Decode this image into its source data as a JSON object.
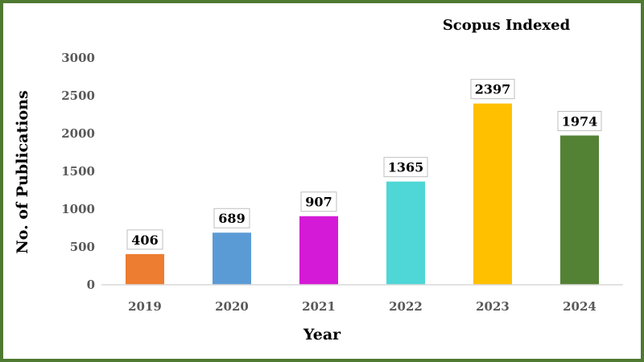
{
  "chart_data": {
    "type": "bar",
    "title": "Scopus Indexed",
    "xlabel": "Year",
    "ylabel": "No. of Publications",
    "categories": [
      "2019",
      "2020",
      "2021",
      "2022",
      "2023",
      "2024"
    ],
    "values": [
      406,
      689,
      907,
      1365,
      2397,
      1974
    ],
    "data_labels": [
      "406",
      "689",
      "907",
      "1365",
      "2397",
      "1974"
    ],
    "colors": [
      "#ed7d31",
      "#5b9bd5",
      "#d41ad6",
      "#4fd6d6",
      "#ffc000",
      "#548235"
    ],
    "ylim": [
      0,
      3000
    ],
    "yticks": [
      0,
      500,
      1000,
      1500,
      2000,
      2500,
      3000
    ],
    "ytick_labels": [
      "0",
      "500",
      "1000",
      "1500",
      "2000",
      "2500",
      "3000"
    ],
    "grid": false,
    "legend": "none",
    "frame_color": "#4e7a32"
  }
}
